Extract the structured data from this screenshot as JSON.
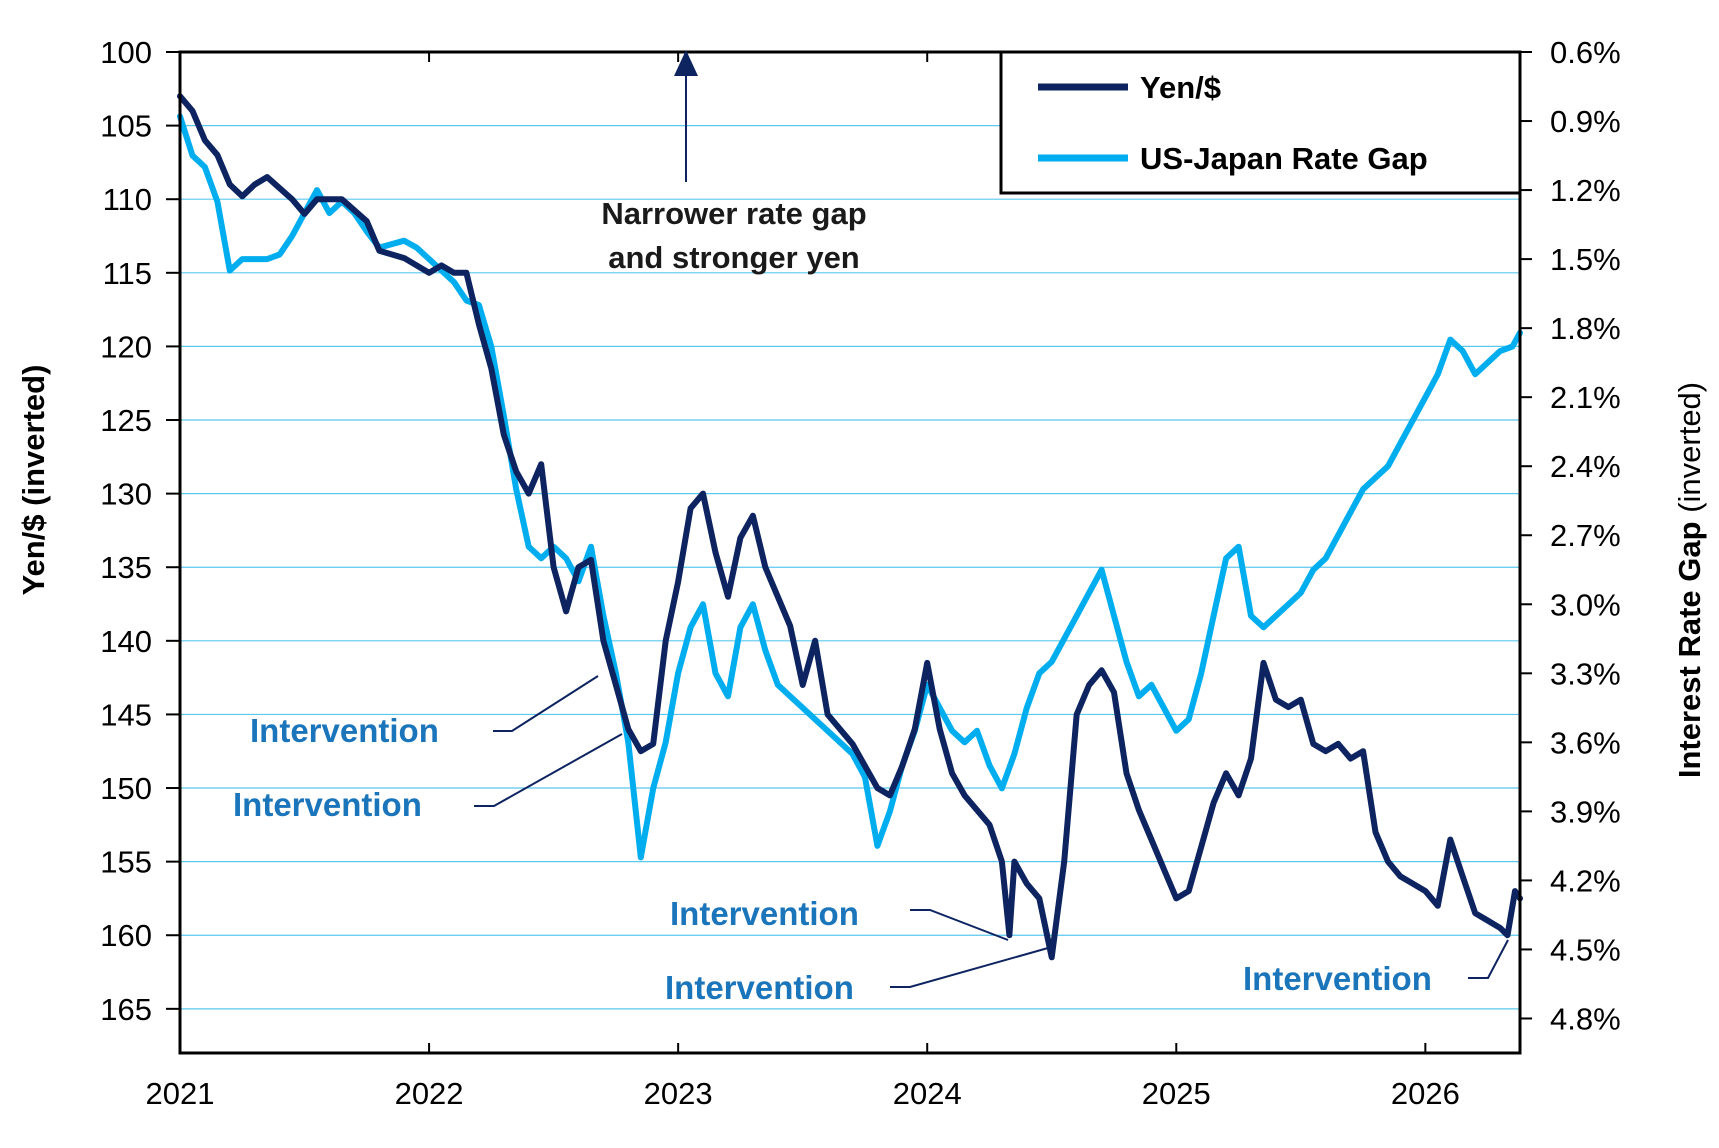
{
  "chart_data": {
    "type": "line",
    "title": "",
    "x_ticks": [
      "2021",
      "2022",
      "2023",
      "2024",
      "2025",
      "2026"
    ],
    "left_axis": {
      "label": "Yen/$ (inverted)",
      "inverted": true,
      "range": [
        100,
        168
      ],
      "ticks": [
        "100",
        "105",
        "110",
        "115",
        "120",
        "125",
        "130",
        "135",
        "140",
        "145",
        "150",
        "155",
        "160",
        "165"
      ]
    },
    "right_axis": {
      "label_bold": "Interest Rate Gap",
      "label_normal": " (inverted)",
      "inverted": true,
      "range": [
        0.6,
        4.95
      ],
      "ticks": [
        "0.6%",
        "0.9%",
        "1.2%",
        "1.5%",
        "1.8%",
        "2.1%",
        "2.4%",
        "2.7%",
        "3.0%",
        "3.3%",
        "3.6%",
        "3.9%",
        "4.2%",
        "4.5%",
        "4.8%"
      ]
    },
    "legend": {
      "placement": "top-right"
    },
    "grid": true,
    "series": [
      {
        "name": "Yen/$",
        "axis": "left",
        "color": "#0D2461",
        "points": [
          [
            2021.0,
            103.0
          ],
          [
            2021.05,
            104.0
          ],
          [
            2021.1,
            106.0
          ],
          [
            2021.15,
            107.0
          ],
          [
            2021.2,
            109.0
          ],
          [
            2021.25,
            109.8
          ],
          [
            2021.3,
            109.0
          ],
          [
            2021.35,
            108.5
          ],
          [
            2021.45,
            110.0
          ],
          [
            2021.5,
            111.0
          ],
          [
            2021.55,
            110.0
          ],
          [
            2021.65,
            110.0
          ],
          [
            2021.75,
            111.5
          ],
          [
            2021.8,
            113.5
          ],
          [
            2021.9,
            114.0
          ],
          [
            2022.0,
            115.0
          ],
          [
            2022.05,
            114.5
          ],
          [
            2022.1,
            115.0
          ],
          [
            2022.15,
            115.0
          ],
          [
            2022.2,
            118.5
          ],
          [
            2022.25,
            121.5
          ],
          [
            2022.3,
            126.0
          ],
          [
            2022.35,
            128.5
          ],
          [
            2022.4,
            130.0
          ],
          [
            2022.45,
            128.0
          ],
          [
            2022.5,
            135.0
          ],
          [
            2022.55,
            138.0
          ],
          [
            2022.6,
            135.0
          ],
          [
            2022.65,
            134.5
          ],
          [
            2022.7,
            140.0
          ],
          [
            2022.75,
            143.0
          ],
          [
            2022.8,
            146.0
          ],
          [
            2022.85,
            147.5
          ],
          [
            2022.9,
            147.0
          ],
          [
            2022.95,
            140.0
          ],
          [
            2023.0,
            136.0
          ],
          [
            2023.05,
            131.0
          ],
          [
            2023.1,
            130.0
          ],
          [
            2023.15,
            134.0
          ],
          [
            2023.2,
            137.0
          ],
          [
            2023.25,
            133.0
          ],
          [
            2023.3,
            131.5
          ],
          [
            2023.35,
            135.0
          ],
          [
            2023.45,
            139.0
          ],
          [
            2023.5,
            143.0
          ],
          [
            2023.55,
            140.0
          ],
          [
            2023.6,
            145.0
          ],
          [
            2023.7,
            147.0
          ],
          [
            2023.8,
            150.0
          ],
          [
            2023.85,
            150.5
          ],
          [
            2023.9,
            148.5
          ],
          [
            2023.95,
            146.0
          ],
          [
            2024.0,
            141.5
          ],
          [
            2024.05,
            146.0
          ],
          [
            2024.1,
            149.0
          ],
          [
            2024.15,
            150.5
          ],
          [
            2024.2,
            151.5
          ],
          [
            2024.25,
            152.5
          ],
          [
            2024.3,
            155.0
          ],
          [
            2024.33,
            160.0
          ],
          [
            2024.35,
            155.0
          ],
          [
            2024.4,
            156.5
          ],
          [
            2024.45,
            157.5
          ],
          [
            2024.5,
            161.5
          ],
          [
            2024.55,
            155.0
          ],
          [
            2024.6,
            145.0
          ],
          [
            2024.65,
            143.0
          ],
          [
            2024.7,
            142.0
          ],
          [
            2024.75,
            143.5
          ],
          [
            2024.8,
            149.0
          ],
          [
            2024.85,
            151.5
          ],
          [
            2024.9,
            153.5
          ],
          [
            2024.95,
            155.5
          ],
          [
            2025.0,
            157.5
          ],
          [
            2025.05,
            157.0
          ],
          [
            2025.1,
            154.0
          ],
          [
            2025.15,
            151.0
          ],
          [
            2025.2,
            149.0
          ],
          [
            2025.25,
            150.5
          ],
          [
            2025.3,
            148.0
          ],
          [
            2025.35,
            141.5
          ],
          [
            2025.4,
            144.0
          ],
          [
            2025.45,
            144.5
          ],
          [
            2025.5,
            144.0
          ],
          [
            2025.55,
            147.0
          ],
          [
            2025.6,
            147.5
          ],
          [
            2025.65,
            147.0
          ],
          [
            2025.7,
            148.0
          ],
          [
            2025.75,
            147.5
          ],
          [
            2025.8,
            153.0
          ],
          [
            2025.85,
            155.0
          ],
          [
            2025.9,
            156.0
          ],
          [
            2025.95,
            156.5
          ],
          [
            2026.0,
            157.0
          ],
          [
            2026.05,
            158.0
          ],
          [
            2026.1,
            153.5
          ],
          [
            2026.15,
            156.0
          ],
          [
            2026.2,
            158.5
          ],
          [
            2026.25,
            159.0
          ],
          [
            2026.3,
            159.5
          ],
          [
            2026.33,
            160.0
          ],
          [
            2026.36,
            157.0
          ],
          [
            2026.38,
            157.5
          ]
        ]
      },
      {
        "name": "US-Japan Rate Gap",
        "axis": "right",
        "color": "#00AEEF",
        "points": [
          [
            2021.0,
            0.88
          ],
          [
            2021.05,
            1.05
          ],
          [
            2021.1,
            1.1
          ],
          [
            2021.15,
            1.25
          ],
          [
            2021.2,
            1.55
          ],
          [
            2021.25,
            1.5
          ],
          [
            2021.3,
            1.5
          ],
          [
            2021.35,
            1.5
          ],
          [
            2021.4,
            1.48
          ],
          [
            2021.45,
            1.4
          ],
          [
            2021.5,
            1.3
          ],
          [
            2021.55,
            1.2
          ],
          [
            2021.6,
            1.3
          ],
          [
            2021.65,
            1.25
          ],
          [
            2021.7,
            1.3
          ],
          [
            2021.75,
            1.38
          ],
          [
            2021.8,
            1.45
          ],
          [
            2021.9,
            1.42
          ],
          [
            2021.95,
            1.45
          ],
          [
            2022.0,
            1.5
          ],
          [
            2022.05,
            1.55
          ],
          [
            2022.1,
            1.6
          ],
          [
            2022.15,
            1.68
          ],
          [
            2022.2,
            1.7
          ],
          [
            2022.25,
            1.88
          ],
          [
            2022.3,
            2.18
          ],
          [
            2022.35,
            2.5
          ],
          [
            2022.4,
            2.75
          ],
          [
            2022.45,
            2.8
          ],
          [
            2022.5,
            2.75
          ],
          [
            2022.55,
            2.8
          ],
          [
            2022.6,
            2.9
          ],
          [
            2022.65,
            2.75
          ],
          [
            2022.7,
            3.05
          ],
          [
            2022.75,
            3.3
          ],
          [
            2022.8,
            3.6
          ],
          [
            2022.85,
            4.1
          ],
          [
            2022.9,
            3.8
          ],
          [
            2022.95,
            3.6
          ],
          [
            2023.0,
            3.3
          ],
          [
            2023.05,
            3.1
          ],
          [
            2023.1,
            3.0
          ],
          [
            2023.15,
            3.3
          ],
          [
            2023.2,
            3.4
          ],
          [
            2023.25,
            3.1
          ],
          [
            2023.3,
            3.0
          ],
          [
            2023.35,
            3.2
          ],
          [
            2023.4,
            3.35
          ],
          [
            2023.45,
            3.4
          ],
          [
            2023.5,
            3.45
          ],
          [
            2023.55,
            3.5
          ],
          [
            2023.6,
            3.55
          ],
          [
            2023.65,
            3.6
          ],
          [
            2023.7,
            3.65
          ],
          [
            2023.75,
            3.75
          ],
          [
            2023.8,
            4.05
          ],
          [
            2023.85,
            3.9
          ],
          [
            2023.9,
            3.7
          ],
          [
            2023.95,
            3.55
          ],
          [
            2024.0,
            3.35
          ],
          [
            2024.05,
            3.45
          ],
          [
            2024.1,
            3.55
          ],
          [
            2024.15,
            3.6
          ],
          [
            2024.2,
            3.55
          ],
          [
            2024.25,
            3.7
          ],
          [
            2024.3,
            3.8
          ],
          [
            2024.35,
            3.65
          ],
          [
            2024.4,
            3.45
          ],
          [
            2024.45,
            3.3
          ],
          [
            2024.5,
            3.25
          ],
          [
            2024.55,
            3.15
          ],
          [
            2024.6,
            3.05
          ],
          [
            2024.65,
            2.95
          ],
          [
            2024.7,
            2.85
          ],
          [
            2024.75,
            3.05
          ],
          [
            2024.8,
            3.25
          ],
          [
            2024.85,
            3.4
          ],
          [
            2024.9,
            3.35
          ],
          [
            2024.95,
            3.45
          ],
          [
            2025.0,
            3.55
          ],
          [
            2025.05,
            3.5
          ],
          [
            2025.1,
            3.3
          ],
          [
            2025.15,
            3.05
          ],
          [
            2025.2,
            2.8
          ],
          [
            2025.25,
            2.75
          ],
          [
            2025.3,
            3.05
          ],
          [
            2025.35,
            3.1
          ],
          [
            2025.4,
            3.05
          ],
          [
            2025.45,
            3.0
          ],
          [
            2025.5,
            2.95
          ],
          [
            2025.55,
            2.85
          ],
          [
            2025.6,
            2.8
          ],
          [
            2025.65,
            2.7
          ],
          [
            2025.7,
            2.6
          ],
          [
            2025.75,
            2.5
          ],
          [
            2025.8,
            2.45
          ],
          [
            2025.85,
            2.4
          ],
          [
            2025.9,
            2.3
          ],
          [
            2025.95,
            2.2
          ],
          [
            2026.0,
            2.1
          ],
          [
            2026.05,
            2.0
          ],
          [
            2026.1,
            1.85
          ],
          [
            2026.15,
            1.9
          ],
          [
            2026.2,
            2.0
          ],
          [
            2026.25,
            1.95
          ],
          [
            2026.3,
            1.9
          ],
          [
            2026.35,
            1.88
          ],
          [
            2026.38,
            1.82
          ]
        ]
      }
    ],
    "annotations": {
      "top_line1": "Narrower rate gap",
      "top_line2": "and stronger yen",
      "interventions": [
        "Intervention",
        "Intervention",
        "Intervention",
        "Intervention",
        "Intervention"
      ]
    }
  }
}
